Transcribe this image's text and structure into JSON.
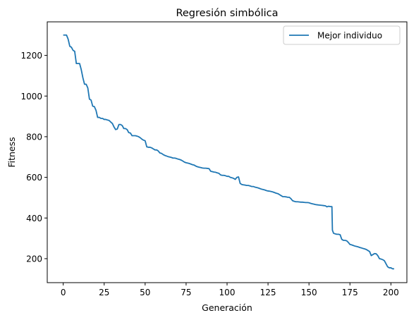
{
  "chart_data": {
    "type": "line",
    "title": "Regresión simbólica",
    "xlabel": "Generación",
    "ylabel": "Fitness",
    "xlim": [
      -9.75,
      209.75
    ],
    "ylim": [
      82,
      1365
    ],
    "xticks": [
      0,
      25,
      50,
      75,
      100,
      125,
      150,
      175,
      200
    ],
    "yticks": [
      200,
      400,
      600,
      800,
      1000,
      1200
    ],
    "grid": false,
    "legend_position": "top-right",
    "series": [
      {
        "name": "Mejor individuo",
        "color": "#1f77b4",
        "points": [
          [
            0,
            1300
          ],
          [
            2,
            1300
          ],
          [
            3,
            1280
          ],
          [
            4,
            1245
          ],
          [
            5,
            1240
          ],
          [
            6,
            1225
          ],
          [
            7,
            1220
          ],
          [
            8,
            1160
          ],
          [
            9,
            1160
          ],
          [
            10,
            1160
          ],
          [
            11,
            1130
          ],
          [
            12,
            1090
          ],
          [
            13,
            1058
          ],
          [
            14,
            1058
          ],
          [
            15,
            1040
          ],
          [
            16,
            985
          ],
          [
            17,
            980
          ],
          [
            18,
            950
          ],
          [
            19,
            948
          ],
          [
            20,
            930
          ],
          [
            21,
            895
          ],
          [
            22,
            895
          ],
          [
            23,
            890
          ],
          [
            24,
            890
          ],
          [
            25,
            885
          ],
          [
            26,
            885
          ],
          [
            27,
            882
          ],
          [
            28,
            880
          ],
          [
            29,
            872
          ],
          [
            30,
            865
          ],
          [
            31,
            848
          ],
          [
            32,
            835
          ],
          [
            33,
            838
          ],
          [
            34,
            860
          ],
          [
            35,
            860
          ],
          [
            36,
            855
          ],
          [
            37,
            840
          ],
          [
            38,
            840
          ],
          [
            39,
            835
          ],
          [
            40,
            820
          ],
          [
            41,
            818
          ],
          [
            42,
            805
          ],
          [
            43,
            805
          ],
          [
            44,
            805
          ],
          [
            45,
            803
          ],
          [
            46,
            800
          ],
          [
            47,
            795
          ],
          [
            48,
            788
          ],
          [
            49,
            783
          ],
          [
            50,
            780
          ],
          [
            51,
            750
          ],
          [
            52,
            748
          ],
          [
            53,
            748
          ],
          [
            54,
            745
          ],
          [
            55,
            740
          ],
          [
            56,
            735
          ],
          [
            57,
            735
          ],
          [
            58,
            730
          ],
          [
            59,
            720
          ],
          [
            60,
            718
          ],
          [
            61,
            712
          ],
          [
            62,
            708
          ],
          [
            63,
            705
          ],
          [
            64,
            702
          ],
          [
            65,
            700
          ],
          [
            66,
            698
          ],
          [
            67,
            695
          ],
          [
            68,
            695
          ],
          [
            69,
            693
          ],
          [
            70,
            690
          ],
          [
            71,
            688
          ],
          [
            72,
            685
          ],
          [
            73,
            680
          ],
          [
            74,
            675
          ],
          [
            75,
            672
          ],
          [
            76,
            670
          ],
          [
            77,
            668
          ],
          [
            78,
            665
          ],
          [
            79,
            662
          ],
          [
            80,
            660
          ],
          [
            81,
            655
          ],
          [
            82,
            652
          ],
          [
            83,
            650
          ],
          [
            84,
            648
          ],
          [
            85,
            646
          ],
          [
            86,
            645
          ],
          [
            87,
            645
          ],
          [
            88,
            644
          ],
          [
            89,
            643
          ],
          [
            90,
            630
          ],
          [
            91,
            628
          ],
          [
            92,
            626
          ],
          [
            93,
            625
          ],
          [
            94,
            622
          ],
          [
            95,
            620
          ],
          [
            96,
            612
          ],
          [
            97,
            610
          ],
          [
            98,
            610
          ],
          [
            99,
            608
          ],
          [
            100,
            605
          ],
          [
            101,
            605
          ],
          [
            102,
            600
          ],
          [
            103,
            598
          ],
          [
            104,
            595
          ],
          [
            105,
            590
          ],
          [
            106,
            600
          ],
          [
            107,
            602
          ],
          [
            108,
            570
          ],
          [
            109,
            565
          ],
          [
            110,
            563
          ],
          [
            111,
            562
          ],
          [
            112,
            560
          ],
          [
            113,
            560
          ],
          [
            114,
            558
          ],
          [
            115,
            555
          ],
          [
            116,
            555
          ],
          [
            117,
            552
          ],
          [
            118,
            550
          ],
          [
            119,
            548
          ],
          [
            120,
            545
          ],
          [
            121,
            542
          ],
          [
            122,
            540
          ],
          [
            123,
            538
          ],
          [
            124,
            535
          ],
          [
            125,
            533
          ],
          [
            126,
            532
          ],
          [
            127,
            530
          ],
          [
            128,
            528
          ],
          [
            129,
            525
          ],
          [
            130,
            522
          ],
          [
            131,
            520
          ],
          [
            132,
            515
          ],
          [
            133,
            510
          ],
          [
            134,
            505
          ],
          [
            135,
            505
          ],
          [
            136,
            504
          ],
          [
            137,
            502
          ],
          [
            138,
            502
          ],
          [
            139,
            495
          ],
          [
            140,
            485
          ],
          [
            141,
            482
          ],
          [
            142,
            480
          ],
          [
            143,
            480
          ],
          [
            144,
            479
          ],
          [
            145,
            478
          ],
          [
            146,
            478
          ],
          [
            147,
            477
          ],
          [
            148,
            476
          ],
          [
            149,
            476
          ],
          [
            150,
            475
          ],
          [
            151,
            472
          ],
          [
            152,
            470
          ],
          [
            153,
            468
          ],
          [
            154,
            466
          ],
          [
            155,
            465
          ],
          [
            156,
            464
          ],
          [
            157,
            463
          ],
          [
            158,
            462
          ],
          [
            159,
            461
          ],
          [
            160,
            460
          ],
          [
            161,
            455
          ],
          [
            162,
            458
          ],
          [
            163,
            456
          ],
          [
            164,
            456
          ],
          [
            164.3,
            340
          ],
          [
            165,
            325
          ],
          [
            166,
            322
          ],
          [
            167,
            320
          ],
          [
            168,
            320
          ],
          [
            169,
            318
          ],
          [
            170,
            295
          ],
          [
            171,
            290
          ],
          [
            172,
            290
          ],
          [
            173,
            288
          ],
          [
            174,
            280
          ],
          [
            175,
            270
          ],
          [
            176,
            268
          ],
          [
            177,
            265
          ],
          [
            178,
            262
          ],
          [
            179,
            260
          ],
          [
            180,
            258
          ],
          [
            181,
            255
          ],
          [
            182,
            253
          ],
          [
            183,
            250
          ],
          [
            184,
            248
          ],
          [
            185,
            245
          ],
          [
            186,
            240
          ],
          [
            187,
            235
          ],
          [
            188,
            215
          ],
          [
            189,
            220
          ],
          [
            190,
            225
          ],
          [
            191,
            224
          ],
          [
            192,
            215
          ],
          [
            193,
            200
          ],
          [
            194,
            198
          ],
          [
            195,
            195
          ],
          [
            196,
            190
          ],
          [
            197,
            175
          ],
          [
            198,
            160
          ],
          [
            199,
            155
          ],
          [
            200,
            155
          ],
          [
            201,
            150
          ],
          [
            202,
            150
          ]
        ]
      }
    ]
  }
}
